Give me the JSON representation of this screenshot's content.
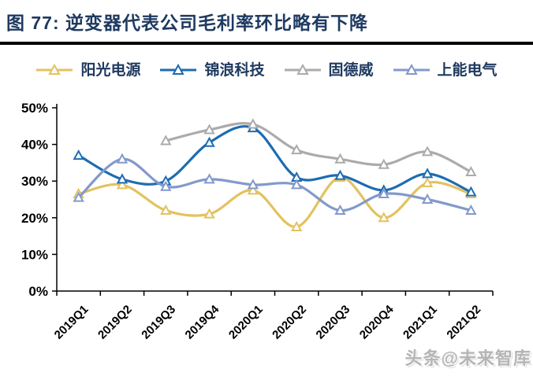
{
  "header": {
    "title": "图 77:  逆变器代表公司毛利率环比略有下降"
  },
  "watermark": {
    "text": "头条@未来智库"
  },
  "chart_data": {
    "type": "line",
    "title": "逆变器代表公司毛利率环比略有下降",
    "categories": [
      "2019Q1",
      "2019Q2",
      "2019Q3",
      "2019Q4",
      "2020Q1",
      "2020Q2",
      "2020Q3",
      "2020Q4",
      "2021Q1",
      "2021Q2"
    ],
    "series": [
      {
        "name": "阳光电源",
        "color": "#E3C25F",
        "values": [
          26.5,
          29,
          22,
          21,
          27.5,
          17.5,
          31,
          20,
          29.5,
          26.5
        ]
      },
      {
        "name": "锦浪科技",
        "color": "#1E6CB0",
        "values": [
          37,
          30.5,
          30,
          40.5,
          44.5,
          31,
          31.5,
          27.5,
          32,
          27
        ]
      },
      {
        "name": "固德威",
        "color": "#ABABAB",
        "values": [
          null,
          null,
          41,
          44,
          45.5,
          38.5,
          36,
          34.5,
          38,
          32.5
        ]
      },
      {
        "name": "上能电气",
        "color": "#8399CC",
        "values": [
          25.5,
          36,
          28.5,
          30.5,
          29,
          29,
          22,
          26.5,
          25,
          22
        ]
      }
    ],
    "ylim": [
      0,
      50
    ],
    "ytick_step": 10,
    "ytick_format": "percent",
    "xlabel": "",
    "ylabel": "",
    "grid": false,
    "legend_position": "top",
    "marker": "triangle-open",
    "smooth": true
  },
  "colors": {
    "title_text": "#1F3A60",
    "divider": "#000000",
    "axis": "#000000",
    "watermark": "#B5B5B5"
  }
}
